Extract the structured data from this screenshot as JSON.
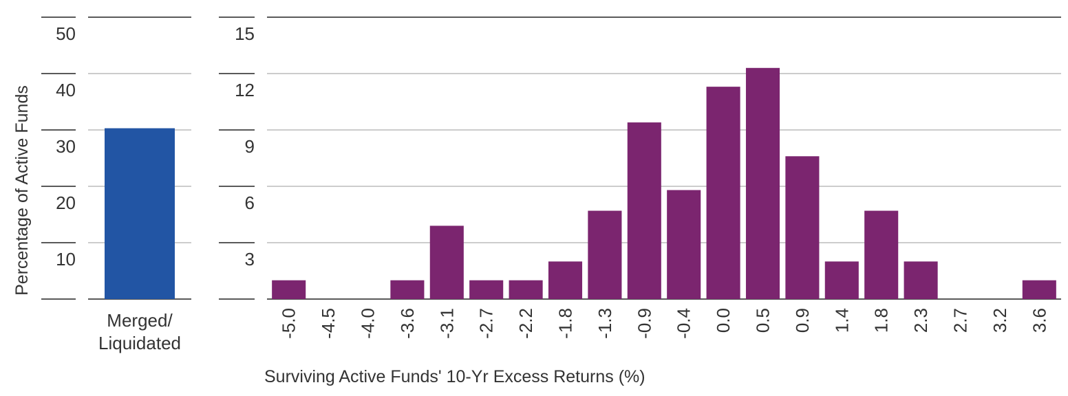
{
  "chart_data": [
    {
      "type": "bar",
      "categories": [
        "Merged/\nLiquidated"
      ],
      "values": [
        30.3
      ],
      "ylim": [
        0,
        50
      ],
      "yticks": [
        10,
        20,
        30,
        40,
        50
      ],
      "ylabel": "Percentage of Active Funds",
      "xlabel": "",
      "bar_color": "#2255A4",
      "grid": true
    },
    {
      "type": "bar",
      "categories": [
        "-5.0",
        "-4.5",
        "-4.0",
        "-3.6",
        "-3.1",
        "-2.7",
        "-2.2",
        "-1.8",
        "-1.3",
        "-0.9",
        "-0.4",
        "0.0",
        "0.5",
        "0.9",
        "1.4",
        "1.8",
        "2.3",
        "2.7",
        "3.2",
        "3.6"
      ],
      "values": [
        1.0,
        0,
        0,
        1.0,
        3.9,
        1.0,
        1.0,
        2.0,
        4.7,
        9.4,
        5.8,
        11.3,
        12.3,
        7.6,
        2.0,
        4.7,
        2.0,
        0,
        0,
        1.0
      ],
      "ylim": [
        0,
        15
      ],
      "yticks": [
        3,
        6,
        9,
        12,
        15
      ],
      "xlabel": "Surviving Active Funds' 10-Yr Excess Returns (%)",
      "ylabel": "",
      "bar_color": "#7B256F",
      "grid": true
    }
  ]
}
